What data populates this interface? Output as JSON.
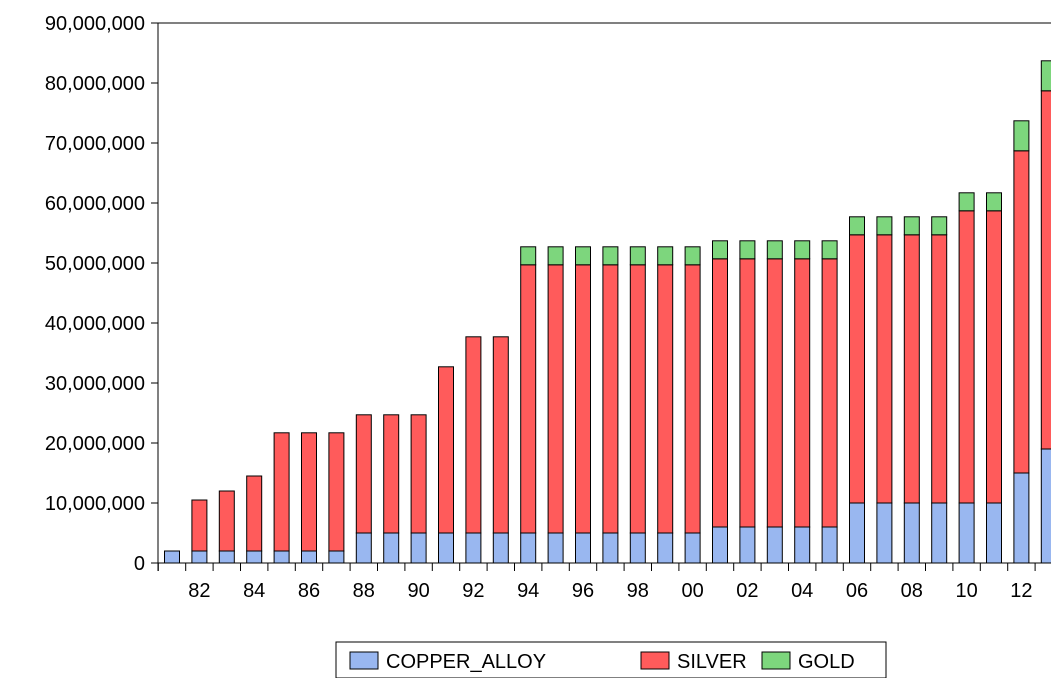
{
  "colors": {
    "background": "#ffffff",
    "axis": "#000000",
    "copper": "#99B7F0",
    "silver": "#FF5B5B",
    "gold": "#7DD67D",
    "outline": "#000000"
  },
  "chart_data": {
    "type": "bar",
    "stacked": true,
    "title": "",
    "xlabel": "",
    "ylabel": "",
    "ylim": [
      0,
      90000000
    ],
    "y_ticks": [
      0,
      10000000,
      20000000,
      30000000,
      40000000,
      50000000,
      60000000,
      70000000,
      80000000,
      90000000
    ],
    "y_tick_labels": [
      "0",
      "10,000,000",
      "20,000,000",
      "30,000,000",
      "40,000,000",
      "50,000,000",
      "60,000,000",
      "70,000,000",
      "80,000,000",
      "90,000,000"
    ],
    "categories": [
      1981,
      1982,
      1983,
      1984,
      1985,
      1986,
      1987,
      1988,
      1989,
      1990,
      1991,
      1992,
      1993,
      1994,
      1995,
      1996,
      1997,
      1998,
      1999,
      2000,
      2001,
      2002,
      2003,
      2004,
      2005,
      2006,
      2007,
      2008,
      2009,
      2010,
      2011,
      2012,
      2013
    ],
    "x_tick_labels": [
      "82",
      "84",
      "86",
      "88",
      "90",
      "92",
      "94",
      "96",
      "98",
      "00",
      "02",
      "04",
      "06",
      "08",
      "10",
      "12"
    ],
    "x_tick_years": [
      1982,
      1984,
      1986,
      1988,
      1990,
      1992,
      1994,
      1996,
      1998,
      2000,
      2002,
      2004,
      2006,
      2008,
      2010,
      2012
    ],
    "grid": false,
    "legend_position": "bottom-center",
    "series": [
      {
        "name": "COPPER_ALLOY",
        "color": "#99B7F0",
        "values": [
          2000000,
          2000000,
          2000000,
          2000000,
          2000000,
          2000000,
          2000000,
          5000000,
          5000000,
          5000000,
          5000000,
          5000000,
          5000000,
          5000000,
          5000000,
          5000000,
          5000000,
          5000000,
          5000000,
          5000000,
          6000000,
          6000000,
          6000000,
          6000000,
          6000000,
          10000000,
          10000000,
          10000000,
          10000000,
          10000000,
          10000000,
          15000000,
          19000000
        ]
      },
      {
        "name": "SILVER",
        "color": "#FF5B5B",
        "values": [
          0,
          8500000,
          10000000,
          12500000,
          19700000,
          19700000,
          19700000,
          19700000,
          19700000,
          19700000,
          27700000,
          32700000,
          32700000,
          44700000,
          44700000,
          44700000,
          44700000,
          44700000,
          44700000,
          44700000,
          44700000,
          44700000,
          44700000,
          44700000,
          44700000,
          44700000,
          44700000,
          44700000,
          44700000,
          48700000,
          48700000,
          53700000,
          59700000
        ]
      },
      {
        "name": "GOLD",
        "color": "#7DD67D",
        "values": [
          0,
          0,
          0,
          0,
          0,
          0,
          0,
          0,
          0,
          0,
          0,
          0,
          0,
          3000000,
          3000000,
          3000000,
          3000000,
          3000000,
          3000000,
          3000000,
          3000000,
          3000000,
          3000000,
          3000000,
          3000000,
          3000000,
          3000000,
          3000000,
          3000000,
          3000000,
          3000000,
          5000000,
          5000000
        ]
      }
    ]
  }
}
